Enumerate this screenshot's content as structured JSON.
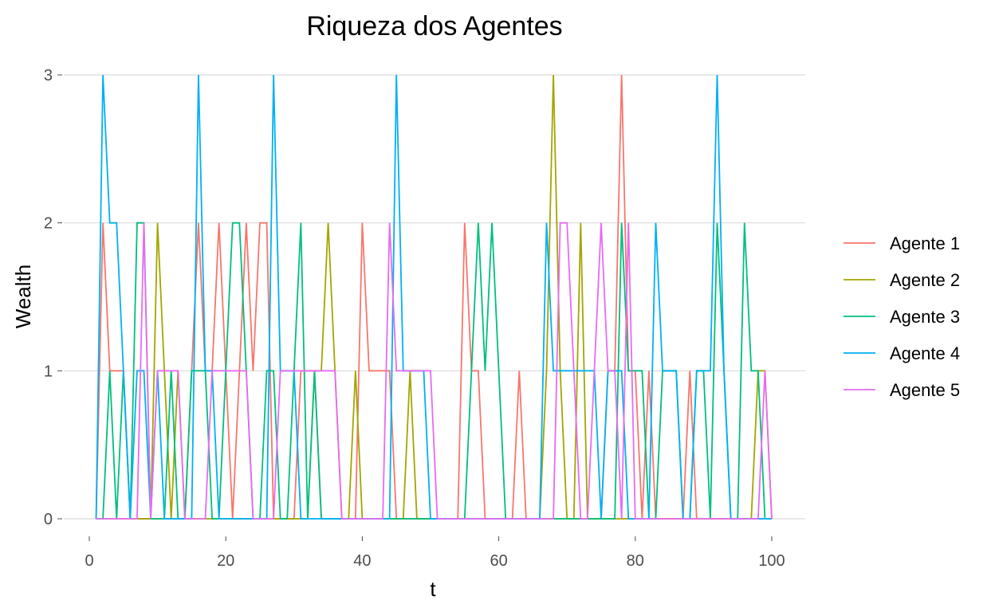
{
  "chart_data": {
    "type": "line",
    "title": "Riqueza dos Agentes",
    "xlabel": "t",
    "ylabel": "Wealth",
    "xlim": [
      0,
      100
    ],
    "ylim": [
      0,
      3
    ],
    "xticks": [
      0,
      20,
      40,
      60,
      80,
      100
    ],
    "yticks": [
      0,
      1,
      2,
      3
    ],
    "grid": "horizontal",
    "legend_position": "right",
    "x": [
      1,
      2,
      3,
      4,
      5,
      6,
      7,
      8,
      9,
      10,
      11,
      12,
      13,
      14,
      15,
      16,
      17,
      18,
      19,
      20,
      21,
      22,
      23,
      24,
      25,
      26,
      27,
      28,
      29,
      30,
      31,
      32,
      33,
      34,
      35,
      36,
      37,
      38,
      39,
      40,
      41,
      42,
      43,
      44,
      45,
      46,
      47,
      48,
      49,
      50,
      51,
      52,
      53,
      54,
      55,
      56,
      57,
      58,
      59,
      60,
      61,
      62,
      63,
      64,
      65,
      66,
      67,
      68,
      69,
      70,
      71,
      72,
      73,
      74,
      75,
      76,
      77,
      78,
      79,
      80,
      81,
      82,
      83,
      84,
      85,
      86,
      87,
      88,
      89,
      90,
      91,
      92,
      93,
      94,
      95,
      96,
      97,
      98,
      99,
      100
    ],
    "series": [
      {
        "name": "Agente 1",
        "color": "#F8766D",
        "values": [
          0,
          2,
          1,
          1,
          1,
          0,
          0,
          0,
          0,
          0,
          0,
          0,
          0,
          0,
          1,
          2,
          1,
          1,
          2,
          1,
          0,
          1,
          2,
          1,
          2,
          2,
          0,
          0,
          0,
          0,
          1,
          1,
          1,
          0,
          0,
          0,
          0,
          0,
          0,
          2,
          1,
          1,
          1,
          1,
          0,
          0,
          0,
          0,
          0,
          0,
          0,
          0,
          0,
          0,
          2,
          1,
          1,
          0,
          0,
          0,
          0,
          0,
          1,
          0,
          0,
          0,
          0,
          0,
          0,
          0,
          0,
          0,
          0,
          0,
          0,
          1,
          1,
          3,
          1,
          1,
          0,
          1,
          0,
          0,
          0,
          0,
          0,
          1,
          0,
          0,
          0,
          0,
          0,
          0,
          0,
          0,
          0,
          0,
          0,
          0
        ]
      },
      {
        "name": "Agente 2",
        "color": "#A3A500",
        "values": [
          0,
          0,
          0,
          0,
          0,
          0,
          0,
          0,
          0,
          2,
          1,
          0,
          1,
          0,
          0,
          0,
          0,
          0,
          0,
          0,
          0,
          0,
          0,
          0,
          0,
          0,
          0,
          0,
          0,
          0,
          0,
          0,
          1,
          1,
          2,
          1,
          0,
          0,
          1,
          0,
          0,
          0,
          0,
          0,
          0,
          0,
          1,
          0,
          0,
          0,
          0,
          0,
          0,
          0,
          0,
          0,
          0,
          0,
          0,
          0,
          0,
          0,
          0,
          0,
          0,
          0,
          1,
          3,
          1,
          0,
          0,
          2,
          0,
          0,
          0,
          0,
          0,
          0,
          0,
          0,
          0,
          0,
          0,
          0,
          0,
          0,
          0,
          0,
          0,
          0,
          0,
          0,
          0,
          0,
          0,
          0,
          0,
          1,
          1,
          0
        ]
      },
      {
        "name": "Agente 3",
        "color": "#00BF7D",
        "values": [
          0,
          0,
          1,
          0,
          1,
          0,
          2,
          2,
          0,
          0,
          0,
          1,
          0,
          0,
          1,
          1,
          1,
          0,
          0,
          1,
          2,
          2,
          1,
          0,
          0,
          1,
          1,
          0,
          0,
          1,
          2,
          0,
          1,
          0,
          0,
          0,
          0,
          0,
          0,
          0,
          0,
          0,
          0,
          0,
          0,
          0,
          0,
          0,
          0,
          0,
          0,
          0,
          0,
          0,
          0,
          1,
          2,
          1,
          2,
          1,
          0,
          0,
          0,
          0,
          0,
          0,
          0,
          0,
          0,
          0,
          0,
          0,
          0,
          0,
          0,
          0,
          0,
          2,
          1,
          1,
          1,
          0,
          0,
          1,
          1,
          1,
          0,
          0,
          1,
          1,
          0,
          2,
          1,
          0,
          0,
          2,
          1,
          1,
          0,
          0
        ]
      },
      {
        "name": "Agente 4",
        "color": "#00B0F6",
        "values": [
          0,
          3,
          2,
          2,
          1,
          0,
          1,
          1,
          0,
          1,
          0,
          0,
          0,
          0,
          0,
          3,
          1,
          1,
          0,
          0,
          0,
          0,
          0,
          0,
          0,
          0,
          3,
          1,
          1,
          1,
          0,
          0,
          0,
          0,
          0,
          0,
          0,
          0,
          0,
          0,
          0,
          0,
          0,
          0,
          3,
          1,
          1,
          1,
          1,
          0,
          0,
          0,
          0,
          0,
          0,
          0,
          0,
          0,
          0,
          0,
          0,
          0,
          0,
          0,
          0,
          0,
          2,
          1,
          1,
          1,
          1,
          1,
          1,
          1,
          0,
          1,
          1,
          1,
          0,
          0,
          0,
          0,
          2,
          1,
          1,
          1,
          0,
          0,
          1,
          1,
          1,
          3,
          1,
          0,
          0,
          0,
          0,
          0,
          0,
          0
        ]
      },
      {
        "name": "Agente 5",
        "color": "#E76BF3",
        "values": [
          0,
          0,
          0,
          0,
          0,
          0,
          0,
          2,
          0,
          1,
          1,
          1,
          1,
          0,
          0,
          0,
          0,
          1,
          1,
          1,
          1,
          1,
          1,
          0,
          0,
          0,
          0,
          1,
          1,
          1,
          1,
          1,
          1,
          1,
          1,
          1,
          0,
          0,
          0,
          0,
          0,
          0,
          0,
          2,
          1,
          1,
          1,
          1,
          1,
          1,
          0,
          0,
          0,
          0,
          0,
          0,
          0,
          0,
          0,
          0,
          0,
          0,
          0,
          0,
          0,
          0,
          0,
          0,
          2,
          2,
          1,
          0,
          0,
          1,
          2,
          1,
          1,
          0,
          2,
          0,
          0,
          0,
          0,
          0,
          0,
          0,
          0,
          0,
          0,
          0,
          0,
          0,
          0,
          0,
          0,
          0,
          0,
          0,
          1,
          0
        ]
      }
    ]
  }
}
